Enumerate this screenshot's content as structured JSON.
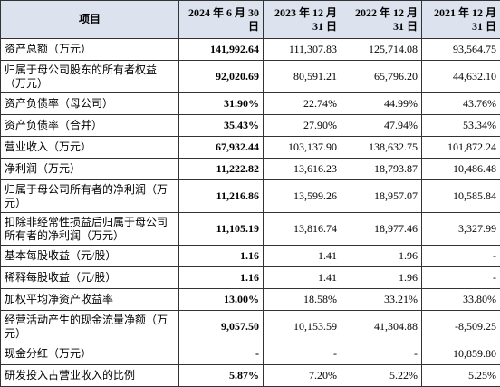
{
  "table": {
    "header": [
      "项目",
      "2024 年 6 月 30 日",
      "2023 年 12 月 31 日",
      "2022 年 12 月 31 日",
      "2021 年 12 月 31 日"
    ],
    "rows": [
      [
        "资产总额（万元）",
        "141,992.64",
        "111,307.83",
        "125,714.08",
        "93,564.75"
      ],
      [
        "归属于母公司股东的所有者权益（万元）",
        "92,020.69",
        "80,591.21",
        "65,796.20",
        "44,632.10"
      ],
      [
        "资产负债率（母公司）",
        "31.90%",
        "22.74%",
        "44.99%",
        "43.76%"
      ],
      [
        "资产负债率（合并）",
        "35.43%",
        "27.90%",
        "47.94%",
        "53.34%"
      ],
      [
        "营业收入（万元）",
        "67,932.44",
        "103,137.90",
        "138,632.75",
        "101,872.24"
      ],
      [
        "净利润（万元）",
        "11,222.82",
        "13,616.23",
        "18,793.87",
        "10,486.48"
      ],
      [
        "归属于母公司所有者的净利润（万元）",
        "11,216.86",
        "13,599.26",
        "18,957.07",
        "10,585.84"
      ],
      [
        "扣除非经常性损益后归属于母公司所有者的净利润（万元）",
        "11,105.19",
        "13,816.74",
        "18,977.46",
        "3,327.99"
      ],
      [
        "基本每股收益（元/股）",
        "1.16",
        "1.41",
        "1.96",
        "-"
      ],
      [
        "稀释每股收益（元/股）",
        "1.16",
        "1.41",
        "1.96",
        "-"
      ],
      [
        "加权平均净资产收益率",
        "13.00%",
        "18.58%",
        "33.21%",
        "33.80%"
      ],
      [
        "经营活动产生的现金流量净额（万元）",
        "9,057.50",
        "10,153.59",
        "41,304.88",
        "-8,509.25"
      ],
      [
        "现金分红（万元）",
        "-",
        "-",
        "-",
        "10,859.80"
      ],
      [
        "研发投入占营业收入的比例",
        "5.87%",
        "7.20%",
        "5.22%",
        "5.25%"
      ]
    ]
  }
}
